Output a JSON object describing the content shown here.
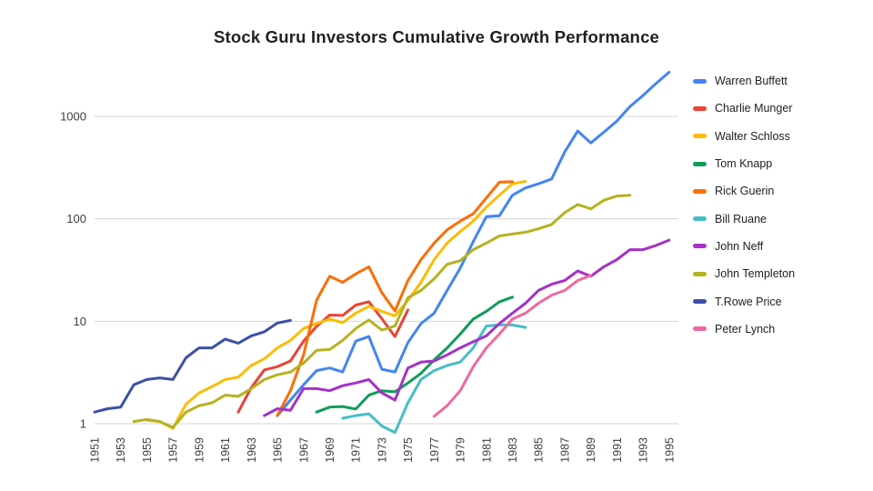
{
  "chart": {
    "title": "Stock Guru Investors Cumulative Growth Performance"
  },
  "colors": {
    "background": "#FFFFFF",
    "grid": "#D5D5D5",
    "axis_text": "#3C4043",
    "title_text": "#202124",
    "legend_text": "#202124"
  },
  "chart_data": {
    "type": "line",
    "title": "Stock Guru Investors Cumulative Growth Performance",
    "xlabel": "",
    "ylabel": "",
    "y_scale": "log",
    "ylim": [
      1,
      1000
    ],
    "y_ticks": [
      1,
      10,
      100,
      1000
    ],
    "x_ticks": [
      1951,
      1953,
      1955,
      1957,
      1959,
      1961,
      1963,
      1965,
      1967,
      1969,
      1971,
      1973,
      1975,
      1977,
      1979,
      1981,
      1983,
      1985,
      1987,
      1989,
      1991,
      1993,
      1995
    ],
    "grid": true,
    "legend_position": "right",
    "series": [
      {
        "name": "Warren Buffett",
        "color": "#4285F4",
        "start_year": 1965,
        "values": [
          1.2,
          1.7,
          2.4,
          3.3,
          3.5,
          3.2,
          6.4,
          7.1,
          3.4,
          3.2,
          6.2,
          9.5,
          12,
          20,
          33,
          60,
          105,
          107,
          170,
          200,
          220,
          245,
          450,
          720,
          550,
          700,
          900,
          1250,
          1600,
          2100,
          2700
        ]
      },
      {
        "name": "Charlie Munger",
        "color": "#EA4335",
        "start_year": 1962,
        "values": [
          1.3,
          2.25,
          3.35,
          3.6,
          4.1,
          6.4,
          8.9,
          11.5,
          11.4,
          14.4,
          15.5,
          10.6,
          7.1,
          12.9
        ]
      },
      {
        "name": "Walter Schloss",
        "color": "#FBBC04",
        "start_year": 1955,
        "values": [
          1.08,
          1.05,
          0.9,
          1.55,
          2.0,
          2.3,
          2.7,
          2.85,
          3.7,
          4.3,
          5.5,
          6.5,
          8.5,
          9.5,
          10.5,
          9.7,
          12,
          14,
          12.5,
          11.3,
          16,
          24,
          40,
          58,
          75,
          95,
          130,
          170,
          220,
          232
        ]
      },
      {
        "name": "Tom Knapp",
        "color": "#0F9D58",
        "start_year": 1968,
        "values": [
          1.3,
          1.45,
          1.47,
          1.39,
          1.9,
          2.1,
          2.05,
          2.5,
          3.1,
          4.2,
          5.5,
          7.5,
          10.5,
          12.5,
          15.5,
          17.2
        ]
      },
      {
        "name": "Rick Guerin",
        "color": "#FF6D01",
        "start_year": 1965,
        "values": [
          1.2,
          2.1,
          4.7,
          16,
          27.5,
          24,
          29,
          34,
          19,
          12.6,
          25,
          40,
          58,
          78,
          95,
          112,
          160,
          228,
          230
        ]
      },
      {
        "name": "Bill Ruane",
        "color": "#46BDC6",
        "start_year": 1970,
        "values": [
          1.13,
          1.2,
          1.25,
          0.95,
          0.82,
          1.6,
          2.7,
          3.3,
          3.7,
          4.0,
          5.5,
          9.0,
          9.2,
          9.2,
          8.7
        ]
      },
      {
        "name": "John Neff",
        "color": "#A432C8",
        "start_year": 1964,
        "values": [
          1.2,
          1.4,
          1.35,
          2.2,
          2.2,
          2.1,
          2.35,
          2.5,
          2.7,
          2.0,
          1.7,
          3.5,
          4.0,
          4.1,
          4.7,
          5.5,
          6.3,
          7.2,
          9.5,
          12,
          15,
          20,
          23,
          25,
          31,
          27.5,
          34,
          40,
          50,
          50,
          55,
          62
        ]
      },
      {
        "name": "John Templeton",
        "color": "#B5B221",
        "start_year": 1954,
        "values": [
          1.05,
          1.1,
          1.05,
          0.92,
          1.3,
          1.5,
          1.6,
          1.9,
          1.85,
          2.2,
          2.7,
          3.0,
          3.2,
          3.9,
          5.2,
          5.3,
          6.5,
          8.5,
          10.3,
          8.2,
          9.0,
          17,
          20,
          26,
          36,
          39,
          50,
          58,
          68,
          71,
          74,
          80,
          88,
          115,
          138,
          125,
          152,
          167,
          170
        ]
      },
      {
        "name": "T.Rowe Price",
        "color": "#3C50A8",
        "start_year": 1951,
        "values": [
          1.3,
          1.4,
          1.45,
          2.4,
          2.7,
          2.8,
          2.7,
          4.4,
          5.5,
          5.5,
          6.7,
          6.1,
          7.2,
          7.9,
          9.6,
          10.2
        ]
      },
      {
        "name": "Peter Lynch",
        "color": "#F0699E",
        "start_year": 1977,
        "values": [
          1.18,
          1.5,
          2.1,
          3.6,
          5.5,
          7.5,
          10.5,
          12,
          15,
          18,
          20,
          25,
          28
        ]
      }
    ]
  }
}
